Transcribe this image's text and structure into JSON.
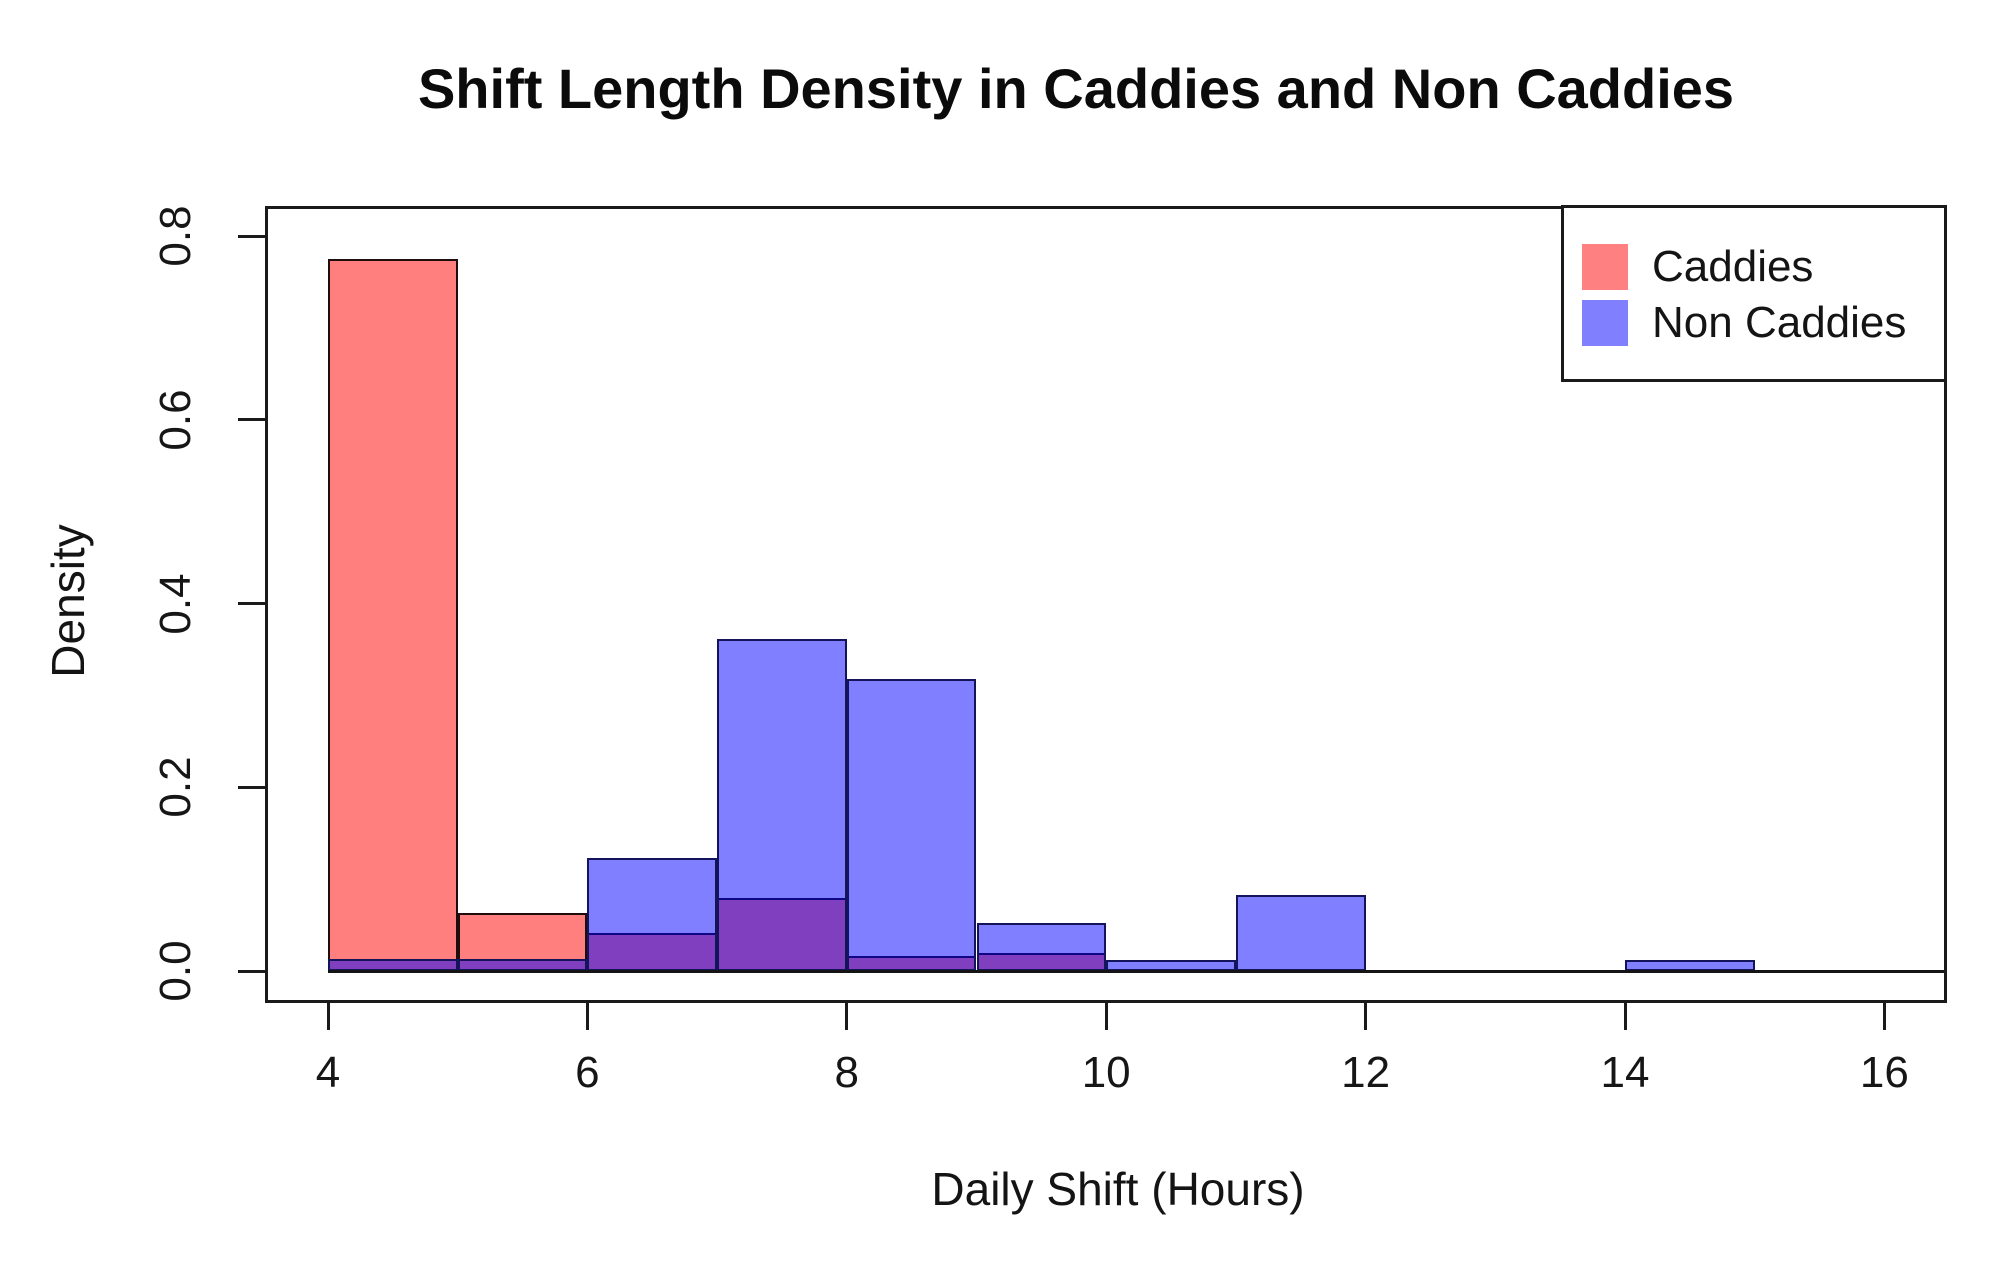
{
  "chart_data": {
    "type": "bar",
    "variant": "overlaid-density-histograms",
    "title": "Shift Length Density in Caddies and Non Caddies",
    "xlabel": "Daily Shift (Hours)",
    "ylabel": "Density",
    "x_ticks": [
      4,
      6,
      8,
      10,
      12,
      14,
      16
    ],
    "y_ticks": [
      0,
      0.2,
      0.4,
      0.6,
      0.8
    ],
    "y_tick_labels": [
      "0.0",
      "0.2",
      "0.4",
      "0.6",
      "0.8"
    ],
    "xlim": [
      3.5,
      16.5
    ],
    "ylim": [
      -0.035,
      0.833
    ],
    "bin_width_hours": 1,
    "grid": false,
    "legend_position": "top-right",
    "overlap_color_on_white": "#8040BF",
    "series": [
      {
        "name": "Caddies",
        "fill": "rgba(255,0,0,0.5)",
        "solid_on_white": "#FF8080",
        "border": "#1f0d0d",
        "bins": [
          {
            "x0": 4,
            "x1": 5,
            "density": 0.775
          },
          {
            "x0": 5,
            "x1": 6,
            "density": 0.063
          },
          {
            "x0": 6,
            "x1": 7,
            "density": 0.041
          },
          {
            "x0": 7,
            "x1": 8,
            "density": 0.08
          },
          {
            "x0": 8,
            "x1": 9,
            "density": 0.016
          },
          {
            "x0": 9,
            "x1": 10,
            "density": 0.02
          }
        ]
      },
      {
        "name": "Non Caddies",
        "fill": "rgba(0,0,255,0.5)",
        "solid_on_white": "#8080FF",
        "border": "#14145a",
        "bins": [
          {
            "x0": 4,
            "x1": 5,
            "density": 0.013
          },
          {
            "x0": 5,
            "x1": 6,
            "density": 0.013
          },
          {
            "x0": 6,
            "x1": 7,
            "density": 0.123
          },
          {
            "x0": 7,
            "x1": 8,
            "density": 0.361
          },
          {
            "x0": 8,
            "x1": 9,
            "density": 0.318
          },
          {
            "x0": 9,
            "x1": 10,
            "density": 0.052
          },
          {
            "x0": 10,
            "x1": 11,
            "density": 0.012
          },
          {
            "x0": 11,
            "x1": 12,
            "density": 0.083
          },
          {
            "x0": 12,
            "x1": 13,
            "density": 0
          },
          {
            "x0": 13,
            "x1": 14,
            "density": 0
          },
          {
            "x0": 14,
            "x1": 15,
            "density": 0.012
          }
        ]
      }
    ]
  }
}
